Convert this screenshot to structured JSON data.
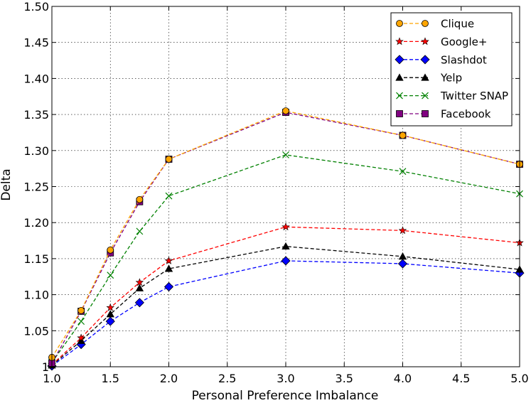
{
  "chart_data": {
    "type": "line",
    "title": "",
    "xlabel": "Personal Preference Imbalance",
    "ylabel": "Delta",
    "xlim": [
      1.0,
      5.0
    ],
    "ylim": [
      1.0,
      1.5
    ],
    "grid": true,
    "legend_position": "top-right",
    "x_ticks": [
      1.0,
      1.5,
      2.0,
      2.5,
      3.0,
      3.5,
      4.0,
      4.5,
      5.0
    ],
    "x_tick_labels": [
      "1.0",
      "1.5",
      "2.0",
      "2.5",
      "3.0",
      "3.5",
      "4.0",
      "4.5",
      "5.0"
    ],
    "y_ticks": [
      1.0,
      1.05,
      1.1,
      1.15,
      1.2,
      1.25,
      1.3,
      1.35,
      1.4,
      1.45,
      1.5
    ],
    "y_tick_labels": [
      "1",
      "1.05",
      "1.10",
      "1.15",
      "1.20",
      "1.25",
      "1.30",
      "1.35",
      "1.40",
      "1.45",
      "1.50"
    ],
    "x": [
      1.0,
      1.25,
      1.5,
      1.75,
      2.0,
      3.0,
      4.0,
      5.0
    ],
    "series": [
      {
        "name": "Clique",
        "color": "#ffa500",
        "marker": "circle",
        "values": [
          1.013,
          1.078,
          1.162,
          1.232,
          1.288,
          1.355,
          1.321,
          1.281
        ]
      },
      {
        "name": "Google+",
        "color": "#ff0000",
        "marker": "star",
        "values": [
          1.003,
          1.04,
          1.082,
          1.117,
          1.147,
          1.194,
          1.189,
          1.172
        ]
      },
      {
        "name": "Slashdot",
        "color": "#0000ff",
        "marker": "diamond",
        "values": [
          1.001,
          1.031,
          1.063,
          1.089,
          1.111,
          1.147,
          1.143,
          1.13
        ]
      },
      {
        "name": "Yelp",
        "color": "#000000",
        "marker": "triangle",
        "values": [
          1.002,
          1.036,
          1.073,
          1.109,
          1.136,
          1.167,
          1.153,
          1.135
        ]
      },
      {
        "name": "Twitter SNAP",
        "color": "#008000",
        "marker": "x",
        "values": [
          1.006,
          1.063,
          1.127,
          1.188,
          1.237,
          1.294,
          1.271,
          1.24
        ]
      },
      {
        "name": "Facebook",
        "color": "#800080",
        "marker": "square",
        "values": [
          1.005,
          1.077,
          1.158,
          1.229,
          1.288,
          1.353,
          1.321,
          1.281
        ]
      }
    ]
  }
}
